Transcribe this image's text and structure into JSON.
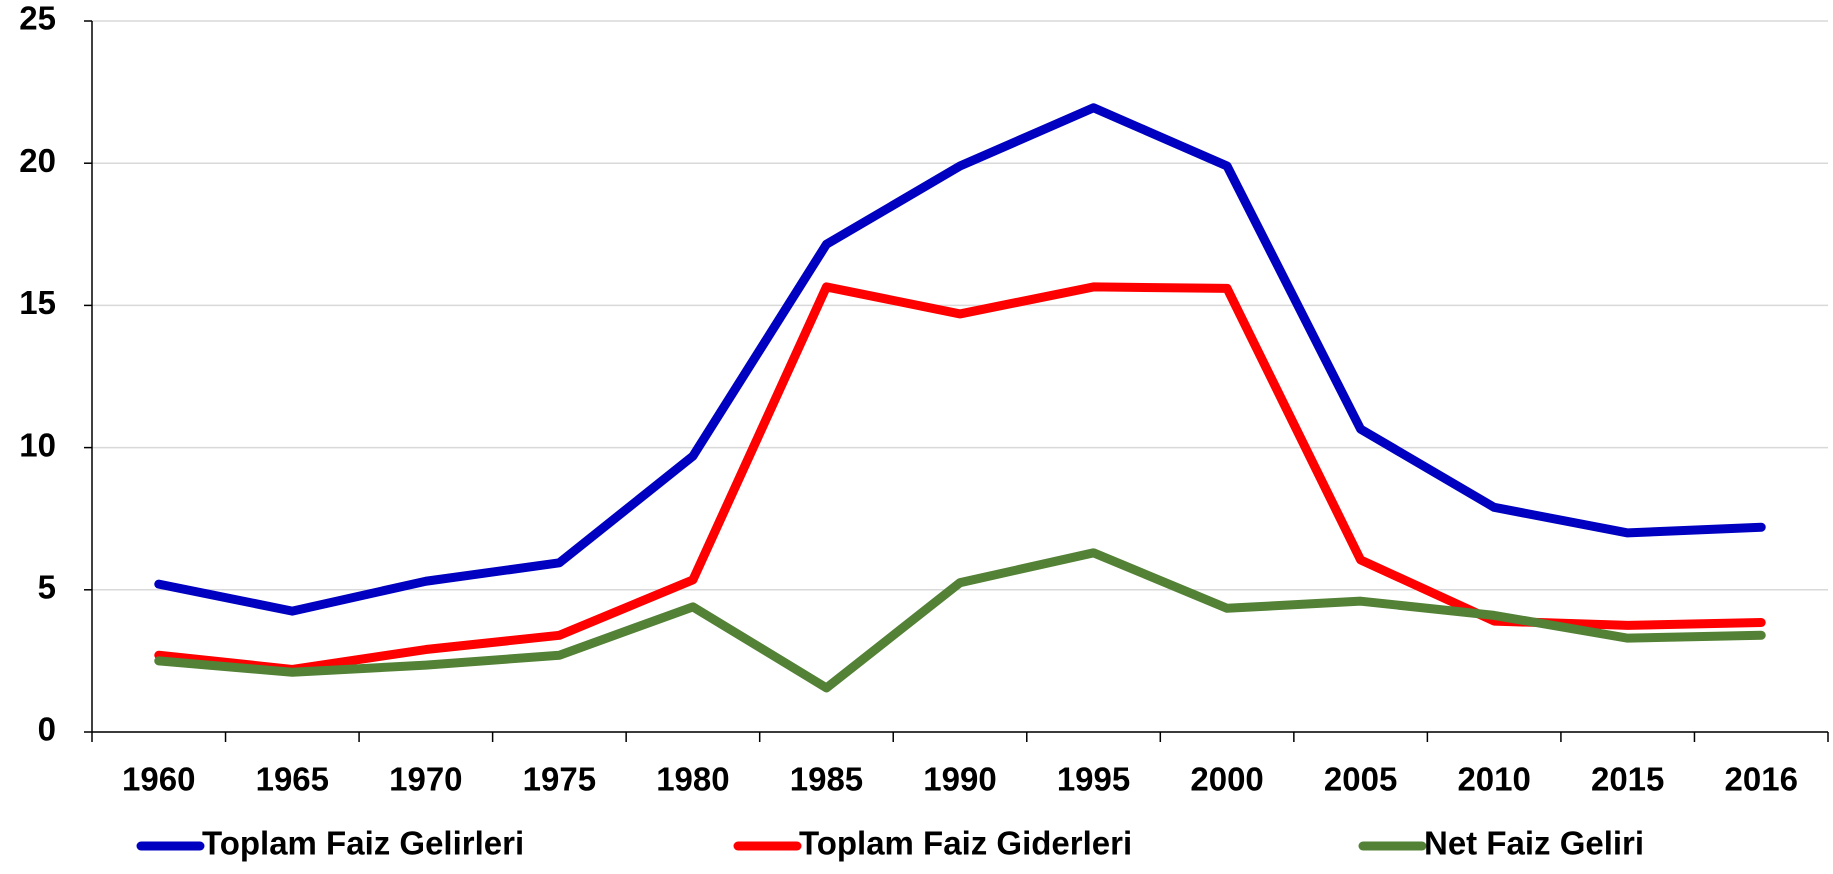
{
  "chart_data": {
    "type": "line",
    "categories": [
      "1960",
      "1965",
      "1970",
      "1975",
      "1980",
      "1985",
      "1990",
      "1995",
      "2000",
      "2005",
      "2010",
      "2015",
      "2016"
    ],
    "series": [
      {
        "name": "Toplam Faiz Gelirleri",
        "color": "#0000c0",
        "values": [
          5.2,
          4.25,
          5.3,
          5.95,
          9.7,
          17.15,
          19.9,
          21.95,
          19.9,
          10.65,
          7.9,
          7.0,
          7.2
        ]
      },
      {
        "name": "Toplam Faiz Giderleri",
        "color": "#ff0000",
        "values": [
          2.7,
          2.2,
          2.9,
          3.4,
          5.35,
          15.65,
          14.7,
          15.65,
          15.6,
          6.05,
          3.9,
          3.75,
          3.85
        ]
      },
      {
        "name": "Net Faiz Geliri",
        "color": "#538135",
        "values": [
          2.5,
          2.1,
          2.35,
          2.7,
          4.4,
          1.55,
          5.25,
          6.3,
          4.35,
          4.6,
          4.1,
          3.3,
          3.4
        ]
      }
    ],
    "ylim": [
      0,
      25
    ],
    "yticks": [
      0,
      5,
      10,
      15,
      20,
      25
    ],
    "grid": true,
    "legend": "bottom"
  }
}
